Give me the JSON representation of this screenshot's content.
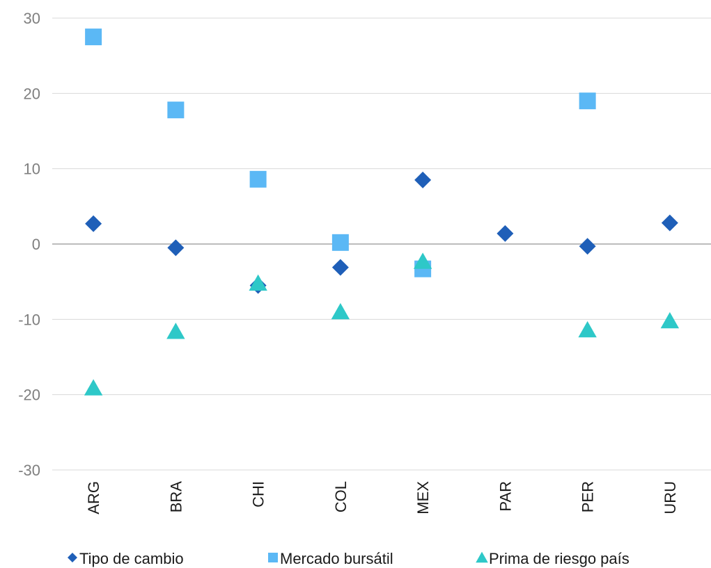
{
  "chart_data": {
    "type": "scatter",
    "categories": [
      "ARG",
      "BRA",
      "CHI",
      "COL",
      "MEX",
      "PAR",
      "PER",
      "URU"
    ],
    "ylim": [
      -30,
      30
    ],
    "yticks": [
      30,
      20,
      10,
      0,
      -10,
      -20,
      -30
    ],
    "grid": true,
    "legend_position": "bottom",
    "series": [
      {
        "name": "Tipo de cambio",
        "marker": "diamond",
        "color": "#1f5fb8",
        "values": [
          2.7,
          -0.5,
          -5.5,
          -3.1,
          8.5,
          1.4,
          -0.3,
          2.8
        ]
      },
      {
        "name": "Mercado bursátil",
        "marker": "square",
        "color": "#5bb8f5",
        "values": [
          27.5,
          17.8,
          8.6,
          0.2,
          -3.3,
          null,
          19.0,
          null
        ]
      },
      {
        "name": "Prima de riesgo país",
        "marker": "triangle",
        "color": "#2ec8c8",
        "values": [
          -19.1,
          -11.6,
          -5.2,
          -9.0,
          -2.3,
          null,
          -11.4,
          -10.2
        ]
      }
    ]
  }
}
